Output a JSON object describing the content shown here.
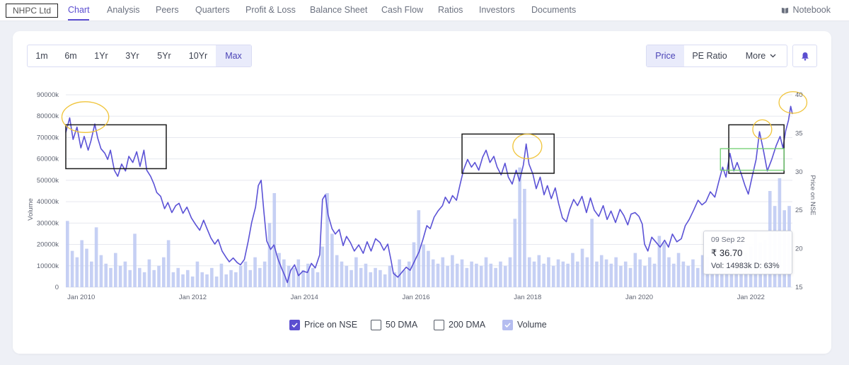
{
  "nav": {
    "company": "NHPC Ltd",
    "tabs": [
      "Chart",
      "Analysis",
      "Peers",
      "Quarters",
      "Profit & Loss",
      "Balance Sheet",
      "Cash Flow",
      "Ratios",
      "Investors",
      "Documents"
    ],
    "active_tab": "Chart",
    "notebook": "Notebook"
  },
  "range_options": [
    "1m",
    "6m",
    "1Yr",
    "3Yr",
    "5Yr",
    "10Yr",
    "Max"
  ],
  "range_selected": "Max",
  "metric_options": [
    "Price",
    "PE Ratio",
    "More"
  ],
  "metric_selected": "Price",
  "tooltip": {
    "date": "09 Sep 22",
    "price": "₹ 36.70",
    "vol": "Vol: 14983k",
    "delivery": "D: 63%"
  },
  "legend": [
    {
      "label": "Price on NSE",
      "checked": true
    },
    {
      "label": "50 DMA",
      "checked": false
    },
    {
      "label": "200 DMA",
      "checked": false
    },
    {
      "label": "Volume",
      "checked": true
    }
  ],
  "colors": {
    "accent": "#5b4ed0",
    "price_line": "#5b52d6",
    "volume_bar": "#bcc8f2",
    "annotation_box": "#1a1a1a",
    "annotation_ellipse": "#f0c43a",
    "annotation_green": "#6fcf6f"
  },
  "chart_data": {
    "type": "line",
    "ylabel_left": "Volume",
    "ylabel_right": "Price on NSE",
    "y_left_ticks": [
      "0",
      "10000k",
      "20000k",
      "30000k",
      "40000k",
      "50000k",
      "60000k",
      "70000k",
      "80000k",
      "90000k"
    ],
    "y_left_range": [
      0,
      90000
    ],
    "y_right_ticks": [
      "15",
      "20",
      "25",
      "30",
      "35",
      "40"
    ],
    "y_right_range": [
      15,
      40
    ],
    "x_ticks": [
      "Jan 2010",
      "Jan 2012",
      "Jan 2014",
      "Jan 2016",
      "Jan 2018",
      "Jan 2020",
      "Jan 2022"
    ],
    "x_tick_years": [
      2010,
      2012,
      2014,
      2016,
      2018,
      2020,
      2022
    ],
    "x_range": [
      2009.75,
      2022.77
    ],
    "grid": true,
    "series": [
      {
        "name": "Price on NSE",
        "axis": "right",
        "points": [
          [
            2009.75,
            35.1
          ],
          [
            2009.82,
            37.0
          ],
          [
            2009.88,
            34.2
          ],
          [
            2009.95,
            35.8
          ],
          [
            2010.02,
            33.1
          ],
          [
            2010.08,
            34.6
          ],
          [
            2010.15,
            32.8
          ],
          [
            2010.2,
            34.0
          ],
          [
            2010.27,
            36.2
          ],
          [
            2010.32,
            34.4
          ],
          [
            2010.38,
            33.0
          ],
          [
            2010.45,
            32.4
          ],
          [
            2010.5,
            31.6
          ],
          [
            2010.55,
            32.8
          ],
          [
            2010.62,
            30.2
          ],
          [
            2010.68,
            29.4
          ],
          [
            2010.75,
            31.0
          ],
          [
            2010.82,
            30.1
          ],
          [
            2010.88,
            32.0
          ],
          [
            2010.95,
            31.2
          ],
          [
            2011.02,
            32.6
          ],
          [
            2011.08,
            30.7
          ],
          [
            2011.15,
            32.8
          ],
          [
            2011.2,
            30.2
          ],
          [
            2011.27,
            29.4
          ],
          [
            2011.33,
            28.4
          ],
          [
            2011.38,
            27.3
          ],
          [
            2011.45,
            26.8
          ],
          [
            2011.52,
            25.2
          ],
          [
            2011.58,
            26.0
          ],
          [
            2011.65,
            24.7
          ],
          [
            2011.72,
            25.6
          ],
          [
            2011.78,
            25.9
          ],
          [
            2011.85,
            24.6
          ],
          [
            2011.92,
            25.4
          ],
          [
            2012.0,
            24.0
          ],
          [
            2012.08,
            23.1
          ],
          [
            2012.15,
            22.4
          ],
          [
            2012.22,
            23.7
          ],
          [
            2012.28,
            22.6
          ],
          [
            2012.35,
            21.4
          ],
          [
            2012.42,
            20.6
          ],
          [
            2012.48,
            21.2
          ],
          [
            2012.55,
            19.7
          ],
          [
            2012.62,
            18.9
          ],
          [
            2012.68,
            18.3
          ],
          [
            2012.75,
            18.8
          ],
          [
            2012.82,
            18.2
          ],
          [
            2012.88,
            17.9
          ],
          [
            2012.95,
            18.6
          ],
          [
            2013.02,
            21.0
          ],
          [
            2013.08,
            23.4
          ],
          [
            2013.15,
            25.4
          ],
          [
            2013.2,
            28.2
          ],
          [
            2013.25,
            28.9
          ],
          [
            2013.3,
            24.8
          ],
          [
            2013.35,
            21.0
          ],
          [
            2013.42,
            19.9
          ],
          [
            2013.48,
            20.5
          ],
          [
            2013.55,
            18.7
          ],
          [
            2013.62,
            17.4
          ],
          [
            2013.68,
            16.4
          ],
          [
            2013.72,
            15.6
          ],
          [
            2013.78,
            17.2
          ],
          [
            2013.85,
            17.9
          ],
          [
            2013.92,
            16.5
          ],
          [
            2014.0,
            17.1
          ],
          [
            2014.08,
            16.9
          ],
          [
            2014.15,
            18.1
          ],
          [
            2014.22,
            17.5
          ],
          [
            2014.3,
            19.2
          ],
          [
            2014.35,
            26.4
          ],
          [
            2014.4,
            27.0
          ],
          [
            2014.45,
            24.4
          ],
          [
            2014.52,
            22.6
          ],
          [
            2014.58,
            21.9
          ],
          [
            2014.65,
            22.5
          ],
          [
            2014.72,
            20.4
          ],
          [
            2014.78,
            21.6
          ],
          [
            2014.85,
            20.8
          ],
          [
            2014.92,
            19.7
          ],
          [
            2015.0,
            20.5
          ],
          [
            2015.08,
            19.4
          ],
          [
            2015.15,
            20.9
          ],
          [
            2015.22,
            19.7
          ],
          [
            2015.3,
            21.3
          ],
          [
            2015.38,
            20.8
          ],
          [
            2015.45,
            19.8
          ],
          [
            2015.52,
            20.6
          ],
          [
            2015.58,
            18.4
          ],
          [
            2015.62,
            16.8
          ],
          [
            2015.7,
            16.3
          ],
          [
            2015.78,
            17.0
          ],
          [
            2015.85,
            17.6
          ],
          [
            2015.92,
            17.2
          ],
          [
            2016.0,
            18.4
          ],
          [
            2016.08,
            19.6
          ],
          [
            2016.15,
            21.2
          ],
          [
            2016.22,
            23.0
          ],
          [
            2016.28,
            22.6
          ],
          [
            2016.35,
            24.1
          ],
          [
            2016.42,
            24.9
          ],
          [
            2016.5,
            25.6
          ],
          [
            2016.55,
            26.7
          ],
          [
            2016.62,
            25.9
          ],
          [
            2016.68,
            26.9
          ],
          [
            2016.75,
            26.3
          ],
          [
            2016.82,
            28.5
          ],
          [
            2016.88,
            30.3
          ],
          [
            2016.95,
            31.6
          ],
          [
            2017.02,
            30.6
          ],
          [
            2017.08,
            31.2
          ],
          [
            2017.15,
            30.2
          ],
          [
            2017.22,
            31.9
          ],
          [
            2017.28,
            32.8
          ],
          [
            2017.35,
            31.2
          ],
          [
            2017.42,
            32.0
          ],
          [
            2017.48,
            30.6
          ],
          [
            2017.55,
            29.6
          ],
          [
            2017.62,
            31.1
          ],
          [
            2017.68,
            29.3
          ],
          [
            2017.75,
            28.4
          ],
          [
            2017.82,
            30.2
          ],
          [
            2017.88,
            28.8
          ],
          [
            2017.95,
            30.9
          ],
          [
            2018.0,
            33.6
          ],
          [
            2018.05,
            31.0
          ],
          [
            2018.12,
            29.7
          ],
          [
            2018.18,
            27.8
          ],
          [
            2018.25,
            29.3
          ],
          [
            2018.32,
            27.0
          ],
          [
            2018.38,
            28.2
          ],
          [
            2018.45,
            26.5
          ],
          [
            2018.52,
            27.9
          ],
          [
            2018.58,
            25.9
          ],
          [
            2018.65,
            24.0
          ],
          [
            2018.72,
            23.5
          ],
          [
            2018.78,
            25.1
          ],
          [
            2018.85,
            26.4
          ],
          [
            2018.92,
            25.6
          ],
          [
            2019.0,
            26.8
          ],
          [
            2019.08,
            24.7
          ],
          [
            2019.15,
            26.6
          ],
          [
            2019.22,
            25.0
          ],
          [
            2019.3,
            24.2
          ],
          [
            2019.38,
            25.6
          ],
          [
            2019.45,
            23.8
          ],
          [
            2019.52,
            24.9
          ],
          [
            2019.6,
            23.4
          ],
          [
            2019.68,
            25.1
          ],
          [
            2019.75,
            24.3
          ],
          [
            2019.82,
            23.1
          ],
          [
            2019.88,
            24.5
          ],
          [
            2019.95,
            24.7
          ],
          [
            2020.02,
            24.2
          ],
          [
            2020.08,
            23.2
          ],
          [
            2020.12,
            20.6
          ],
          [
            2020.18,
            19.7
          ],
          [
            2020.25,
            21.5
          ],
          [
            2020.32,
            20.9
          ],
          [
            2020.4,
            20.2
          ],
          [
            2020.48,
            21.1
          ],
          [
            2020.55,
            20.2
          ],
          [
            2020.62,
            21.9
          ],
          [
            2020.7,
            20.9
          ],
          [
            2020.78,
            21.3
          ],
          [
            2020.85,
            23.0
          ],
          [
            2020.92,
            23.8
          ],
          [
            2021.0,
            25.0
          ],
          [
            2021.08,
            26.3
          ],
          [
            2021.15,
            25.7
          ],
          [
            2021.22,
            26.1
          ],
          [
            2021.3,
            27.4
          ],
          [
            2021.38,
            26.7
          ],
          [
            2021.45,
            28.7
          ],
          [
            2021.52,
            30.6
          ],
          [
            2021.58,
            29.3
          ],
          [
            2021.65,
            32.4
          ],
          [
            2021.72,
            30.1
          ],
          [
            2021.78,
            31.2
          ],
          [
            2021.85,
            29.8
          ],
          [
            2021.92,
            28.2
          ],
          [
            2021.98,
            27.1
          ],
          [
            2022.05,
            29.4
          ],
          [
            2022.12,
            31.6
          ],
          [
            2022.18,
            35.2
          ],
          [
            2022.25,
            32.8
          ],
          [
            2022.32,
            30.1
          ],
          [
            2022.4,
            31.6
          ],
          [
            2022.48,
            33.4
          ],
          [
            2022.55,
            34.6
          ],
          [
            2022.6,
            33.1
          ],
          [
            2022.65,
            35.3
          ],
          [
            2022.7,
            36.7
          ],
          [
            2022.74,
            38.5
          ],
          [
            2022.77,
            37.5
          ]
        ]
      },
      {
        "name": "Volume",
        "axis": "left",
        "type": "bar",
        "note": "daily volume bars, in thousands",
        "values_k": [
          31000,
          17000,
          14000,
          22000,
          18000,
          12000,
          28000,
          15000,
          11000,
          9000,
          16000,
          10000,
          12000,
          8000,
          25000,
          9000,
          7000,
          13000,
          8000,
          10000,
          14000,
          22000,
          7000,
          9000,
          6000,
          8000,
          5000,
          12000,
          7000,
          6000,
          9000,
          5000,
          11000,
          6000,
          8000,
          7000,
          10000,
          12000,
          8000,
          14000,
          9000,
          12000,
          30000,
          44000,
          16000,
          13000,
          10000,
          9000,
          13000,
          8000,
          11000,
          9000,
          7000,
          19000,
          44000,
          25000,
          15000,
          12000,
          10000,
          8000,
          14000,
          9000,
          11000,
          7000,
          9000,
          8000,
          6000,
          10000,
          7000,
          13000,
          8000,
          12000,
          21000,
          36000,
          20000,
          17000,
          13000,
          11000,
          14000,
          10000,
          15000,
          11000,
          13000,
          9000,
          12000,
          11000,
          10000,
          14000,
          11000,
          9000,
          12000,
          10000,
          14000,
          32000,
          56000,
          46000,
          14000,
          12000,
          15000,
          11000,
          14000,
          10000,
          13000,
          12000,
          11000,
          16000,
          12000,
          18000,
          14000,
          32000,
          12000,
          15000,
          13000,
          11000,
          14000,
          10000,
          12000,
          9000,
          16000,
          13000,
          10000,
          14000,
          11000,
          24000,
          21000,
          14000,
          11000,
          16000,
          12000,
          10000,
          13000,
          9000,
          15000,
          14000,
          11000,
          12000,
          17000,
          14000,
          20000,
          13000,
          21000,
          16000,
          19000,
          26000,
          21000,
          22000,
          45000,
          38000,
          51000,
          36000,
          38000
        ]
      }
    ],
    "annotations": [
      {
        "type": "rectangle",
        "color": "black",
        "x": [
          2009.75,
          2011.55
        ],
        "y_price": [
          30.4,
          36.1
        ]
      },
      {
        "type": "rectangle",
        "color": "black",
        "x": [
          2016.85,
          2018.5
        ],
        "y_price": [
          29.8,
          34.9
        ]
      },
      {
        "type": "rectangle",
        "color": "black",
        "x": [
          2021.63,
          2022.62
        ],
        "y_price": [
          29.8,
          36.1
        ]
      },
      {
        "type": "rectangle",
        "color": "green",
        "x": [
          2021.48,
          2022.62
        ],
        "y_price": [
          30.2,
          33.0
        ]
      },
      {
        "type": "ellipse",
        "color": "yellow",
        "cx": 2010.1,
        "cy_price": 37.1,
        "rx_years": 0.42,
        "ry_price": 2.0
      },
      {
        "type": "ellipse",
        "color": "yellow",
        "cx": 2018.02,
        "cy_price": 33.3,
        "rx_years": 0.26,
        "ry_price": 1.6
      },
      {
        "type": "ellipse",
        "color": "yellow",
        "cx": 2022.23,
        "cy_price": 35.5,
        "rx_years": 0.17,
        "ry_price": 1.25
      },
      {
        "type": "ellipse",
        "color": "yellow",
        "cx": 2022.78,
        "cy_price": 39.0,
        "rx_years": 0.25,
        "ry_price": 1.4
      }
    ]
  }
}
